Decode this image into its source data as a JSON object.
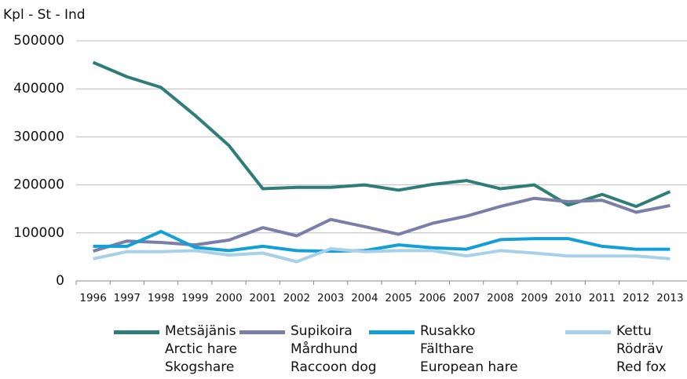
{
  "chart_data": {
    "type": "line",
    "y_label": "Kpl - St - Ind",
    "categories": [
      "1996",
      "1997",
      "1998",
      "1999",
      "2000",
      "2001",
      "2002",
      "2003",
      "2004",
      "2005",
      "2006",
      "2007",
      "2008",
      "2009",
      "2010",
      "2011",
      "2012",
      "2013"
    ],
    "series": [
      {
        "name": "Metsäjänis\nArctic hare\nSkogshare",
        "color": "#2e7d78",
        "values": [
          455000,
          425000,
          403000,
          345000,
          282000,
          192000,
          195000,
          195000,
          200000,
          189000,
          201000,
          209000,
          192000,
          200000,
          158000,
          180000,
          155000,
          186000
        ]
      },
      {
        "name": "Supikoira\nMårdhund\nRaccoon dog",
        "color": "#7b7fa8",
        "values": [
          62000,
          83000,
          80000,
          75000,
          85000,
          111000,
          94000,
          128000,
          113000,
          97000,
          120000,
          135000,
          155000,
          172000,
          165000,
          168000,
          143000,
          157000
        ]
      },
      {
        "name": "Rusakko\nFälthare\nEuropean hare",
        "color": "#129fd6",
        "values": [
          72000,
          72000,
          103000,
          70000,
          63000,
          72000,
          63000,
          62000,
          63000,
          75000,
          69000,
          66000,
          86000,
          88000,
          88000,
          72000,
          66000,
          66000
        ]
      },
      {
        "name": "Kettu\nRödräv\nRed fox",
        "color": "#a8d0e9",
        "values": [
          46000,
          61000,
          61000,
          63000,
          54000,
          58000,
          40000,
          67000,
          61000,
          63000,
          63000,
          52000,
          63000,
          58000,
          52000,
          52000,
          52000,
          46000
        ]
      }
    ],
    "ylim": [
      0,
      500000
    ],
    "yticks": [
      0,
      100000,
      200000,
      300000,
      400000,
      500000
    ],
    "grid": true,
    "legend": "bottom"
  }
}
